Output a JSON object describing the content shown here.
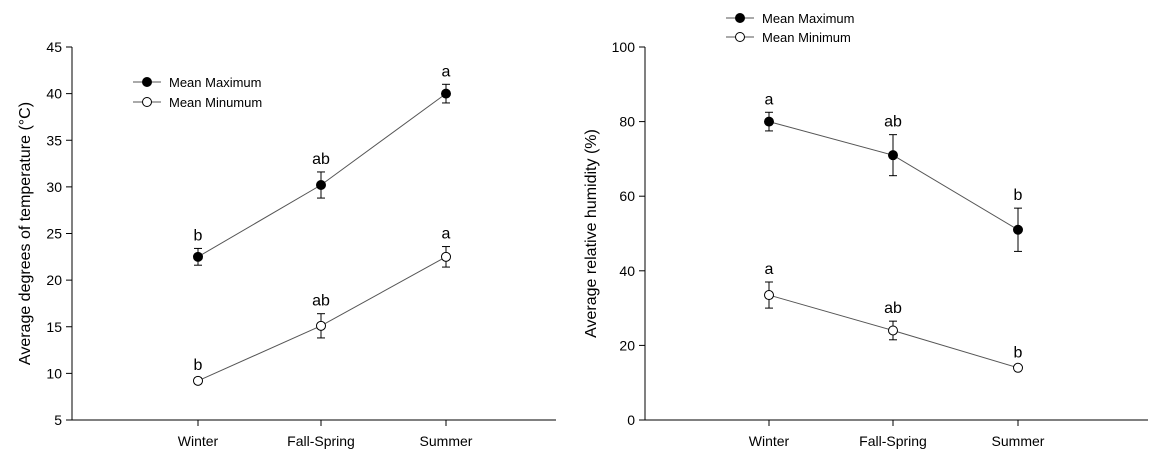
{
  "chart_data": [
    {
      "type": "line",
      "categories": [
        "Winter",
        "Fall-Spring",
        "Summer"
      ],
      "ylabel": "Average degrees of temperature (°C)",
      "xlabel": "",
      "ylim": [
        5,
        45
      ],
      "yticks": [
        5,
        10,
        15,
        20,
        25,
        30,
        35,
        40,
        45
      ],
      "legend_position": "top-left",
      "grid": false,
      "series": [
        {
          "name": "Mean Maximum",
          "marker": "filled-circle",
          "values": [
            22.5,
            30.2,
            40.0
          ],
          "errors": [
            0.9,
            1.4,
            1.0
          ],
          "significance": [
            "b",
            "ab",
            "a"
          ]
        },
        {
          "name": "Mean Minumum",
          "marker": "open-circle",
          "values": [
            9.2,
            15.1,
            22.5
          ],
          "errors": [
            0.3,
            1.3,
            1.1
          ],
          "significance": [
            "b",
            "ab",
            "a"
          ]
        }
      ]
    },
    {
      "type": "line",
      "categories": [
        "Winter",
        "Fall-Spring",
        "Summer"
      ],
      "ylabel": "Average relative humidity (%)",
      "xlabel": "",
      "ylim": [
        0,
        100
      ],
      "yticks": [
        0,
        20,
        40,
        60,
        80,
        100
      ],
      "legend_position": "top-left",
      "grid": false,
      "series": [
        {
          "name": "Mean Maximum",
          "marker": "filled-circle",
          "values": [
            80.0,
            71.0,
            51.0
          ],
          "errors": [
            2.5,
            5.5,
            5.8
          ],
          "significance": [
            "a",
            "ab",
            "b"
          ]
        },
        {
          "name": "Mean Minimum",
          "marker": "open-circle",
          "values": [
            33.5,
            24.0,
            14.0
          ],
          "errors": [
            3.5,
            2.5,
            0.6
          ],
          "significance": [
            "a",
            "ab",
            "b"
          ]
        }
      ]
    }
  ],
  "colors": {
    "line": "#555555",
    "marker_edge": "#000000",
    "filled_marker": "#000000",
    "open_marker": "#ffffff"
  }
}
